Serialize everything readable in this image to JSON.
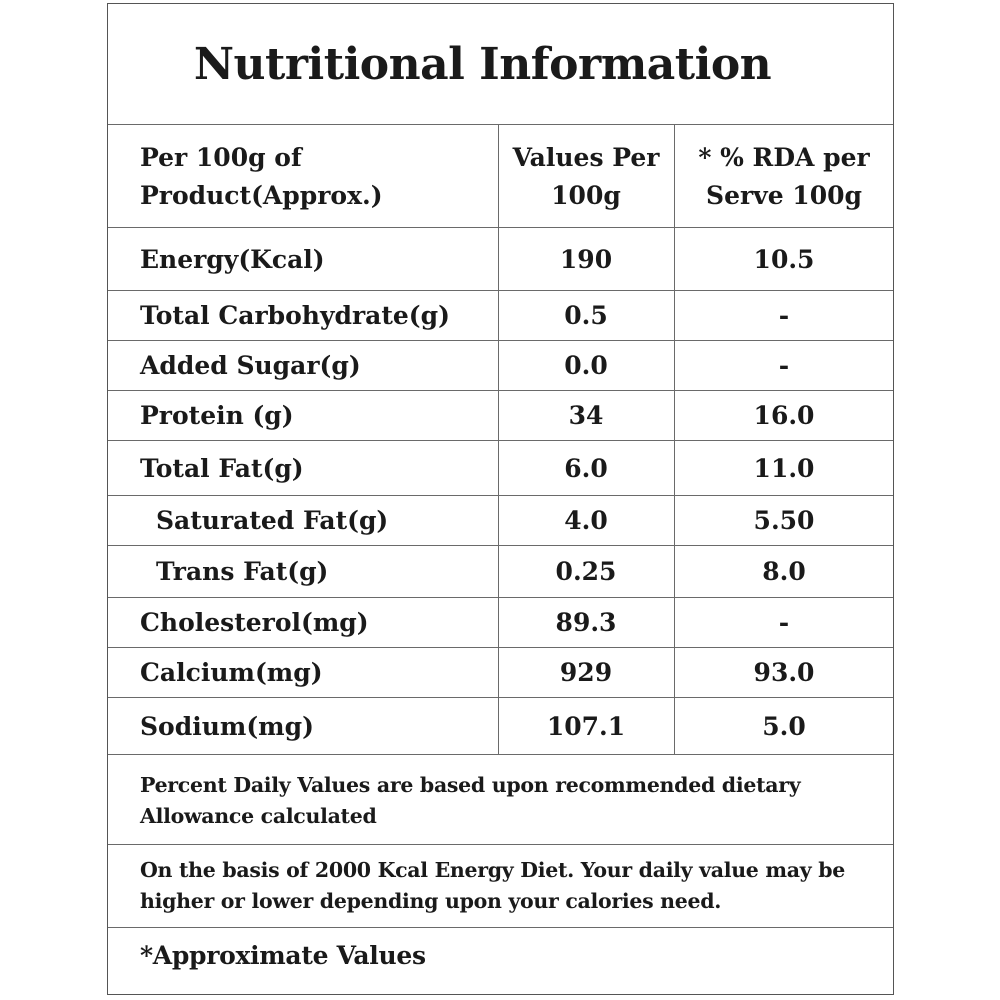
{
  "title": "Nutritional Information",
  "header": {
    "col1": "Per 100g of Product(Approx.)",
    "col2": "Values Per 100g",
    "col3": "* % RDA per Serve 100g"
  },
  "rows": [
    {
      "nutrient": "Energy(Kcal)",
      "value": "190",
      "rda": "10.5"
    },
    {
      "nutrient": "Total Carbohydrate(g)",
      "value": "0.5",
      "rda": "-"
    },
    {
      "nutrient": "Added Sugar(g)",
      "value": "0.0",
      "rda": "-"
    },
    {
      "nutrient": "Protein (g)",
      "value": "34",
      "rda": "16.0"
    },
    {
      "nutrient": "Total Fat(g)",
      "value": "6.0",
      "rda": "11.0"
    },
    {
      "nutrient": "Saturated Fat(g)",
      "value": "4.0",
      "rda": "5.50"
    },
    {
      "nutrient": "Trans Fat(g)",
      "value": "0.25",
      "rda": "8.0"
    },
    {
      "nutrient": "Cholesterol(mg)",
      "value": "89.3",
      "rda": "-"
    },
    {
      "nutrient": "Calcium(mg)",
      "value": "929",
      "rda": "93.0"
    },
    {
      "nutrient": "Sodium(mg)",
      "value": "107.1",
      "rda": "5.0"
    }
  ],
  "notes": {
    "rda_basis": "Percent Daily Values are based upon recommended dietary Allowance calculated",
    "energy_diet": "On the basis of 2000 Kcal Energy Diet. Your daily value may be higher or lower depending upon your calories need.",
    "approximate": "*Approximate Values"
  }
}
